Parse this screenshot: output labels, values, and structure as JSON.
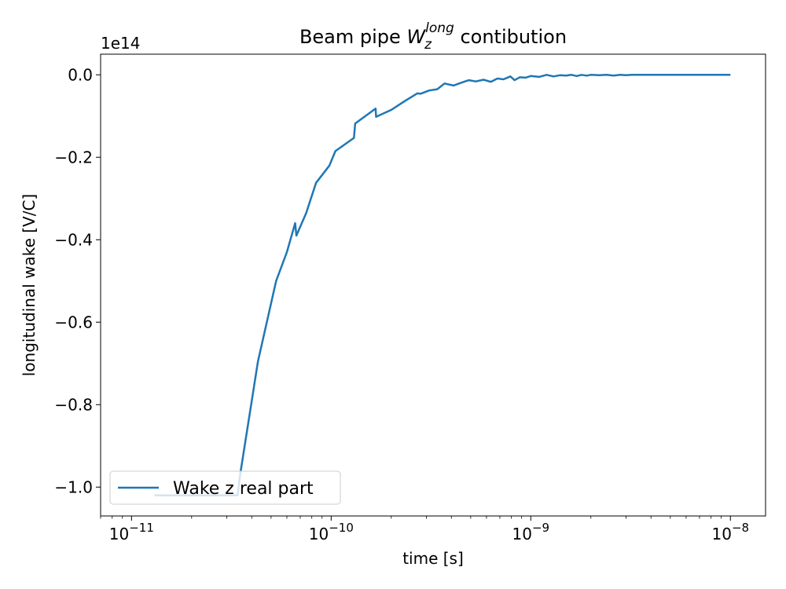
{
  "chart_data": {
    "type": "line",
    "title": {
      "prefix": "Beam pipe ",
      "math_main": "W",
      "math_sub": "z",
      "math_sup": "long",
      "suffix": " contibution"
    },
    "xlabel": "time [s]",
    "ylabel": "longitudinal wake [V/C]",
    "offset_text": "1e14",
    "x_scale": "log",
    "xlim": [
      7e-12,
      1.5e-08
    ],
    "ylim": [
      -1.07,
      0.05
    ],
    "y_units": "x 1e14 V/C",
    "x_ticks": [
      {
        "value": 1e-11,
        "base": "10",
        "exp": "−11"
      },
      {
        "value": 1e-10,
        "base": "10",
        "exp": "−10"
      },
      {
        "value": 1e-09,
        "base": "10",
        "exp": "−9"
      },
      {
        "value": 1e-08,
        "base": "10",
        "exp": "−8"
      }
    ],
    "y_ticks": [
      {
        "value": 0.0,
        "label": "0.0"
      },
      {
        "value": -0.2,
        "label": "−0.2"
      },
      {
        "value": -0.4,
        "label": "−0.4"
      },
      {
        "value": -0.6,
        "label": "−0.6"
      },
      {
        "value": -0.8,
        "label": "−0.8"
      },
      {
        "value": -1.0,
        "label": "−1.0"
      }
    ],
    "grid": false,
    "legend": {
      "position": "lower left",
      "entries": [
        "Wake z real part"
      ]
    },
    "series": [
      {
        "name": "Wake z real part",
        "color": "#1f77b4",
        "x": [
          1.3e-11,
          2e-11,
          3e-11,
          3.4e-11,
          3.5e-11,
          4.3e-11,
          5.3e-11,
          6e-11,
          6.6e-11,
          6.7e-11,
          7.5e-11,
          8.4e-11,
          9.8e-11,
          1.05e-10,
          1.3e-10,
          1.32e-10,
          1.67e-10,
          1.68e-10,
          2e-10,
          2.2e-10,
          2.35e-10,
          2.7e-10,
          2.8e-10,
          3.1e-10,
          3.4e-10,
          3.7e-10,
          4.1e-10,
          4.5e-10,
          4.9e-10,
          5.3e-10,
          5.8e-10,
          6.3e-10,
          6.8e-10,
          7.3e-10,
          7.9e-10,
          8.3e-10,
          8.8e-10,
          9.4e-10,
          1e-09,
          1.1e-09,
          1.2e-09,
          1.3e-09,
          1.4e-09,
          1.5e-09,
          1.6e-09,
          1.7e-09,
          1.8e-09,
          1.9e-09,
          2e-09,
          2.2e-09,
          2.4e-09,
          2.6e-09,
          2.8e-09,
          3e-09,
          3.2e-09,
          3.5e-09,
          4e-09,
          5e-09,
          6e-09,
          8e-09,
          1e-08
        ],
        "y": [
          -1.02,
          -1.02,
          -1.02,
          -1.02,
          -0.97,
          -0.695,
          -0.5,
          -0.43,
          -0.36,
          -0.39,
          -0.335,
          -0.262,
          -0.22,
          -0.185,
          -0.153,
          -0.118,
          -0.082,
          -0.102,
          -0.085,
          -0.072,
          -0.063,
          -0.045,
          -0.046,
          -0.038,
          -0.035,
          -0.021,
          -0.026,
          -0.019,
          -0.013,
          -0.016,
          -0.012,
          -0.017,
          -0.009,
          -0.011,
          -0.004,
          -0.013,
          -0.006,
          -0.007,
          -0.003,
          -0.005,
          0.0,
          -0.004,
          -0.001,
          -0.002,
          0.0,
          -0.003,
          0.0,
          -0.002,
          0.0,
          -0.001,
          0.0,
          -0.002,
          0.0,
          -0.001,
          0.0,
          0.0,
          0.0,
          0.0,
          0.0,
          0.0,
          0.0
        ]
      }
    ]
  }
}
